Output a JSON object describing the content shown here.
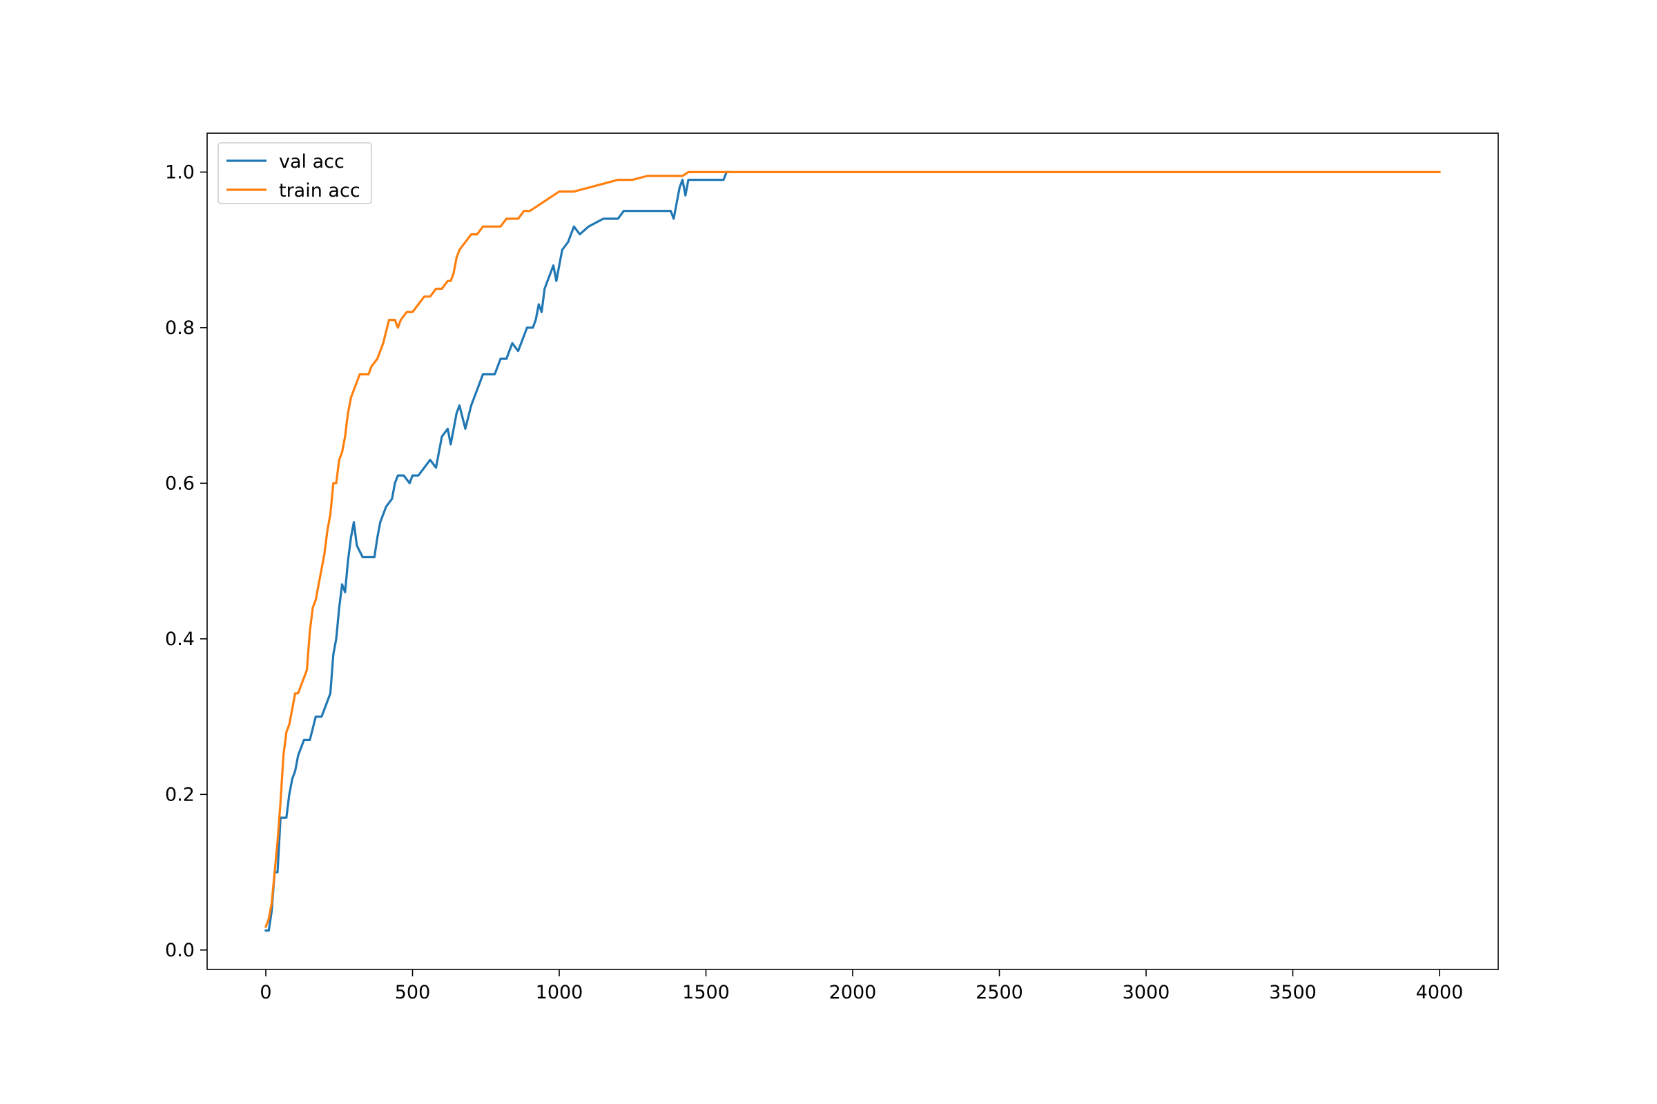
{
  "chart_data": {
    "type": "line",
    "title": "",
    "xlabel": "",
    "ylabel": "",
    "xlim": [
      -200,
      4200
    ],
    "ylim": [
      -0.025,
      1.05
    ],
    "xticks": [
      0,
      500,
      1000,
      1500,
      2000,
      2500,
      3000,
      3500,
      4000
    ],
    "xtick_labels": [
      "0",
      "500",
      "1000",
      "1500",
      "2000",
      "2500",
      "3000",
      "3500",
      "4000"
    ],
    "yticks": [
      0.0,
      0.2,
      0.4,
      0.6,
      0.8,
      1.0
    ],
    "ytick_labels": [
      "0.0",
      "0.2",
      "0.4",
      "0.6",
      "0.8",
      "1.0"
    ],
    "grid": false,
    "legend_position": "top-left",
    "series": [
      {
        "name": "val acc",
        "color": "#1f77b4",
        "x": [
          0,
          10,
          20,
          30,
          40,
          50,
          60,
          70,
          80,
          90,
          100,
          110,
          120,
          130,
          140,
          150,
          170,
          180,
          190,
          210,
          220,
          230,
          240,
          250,
          260,
          270,
          280,
          290,
          300,
          310,
          330,
          350,
          370,
          380,
          390,
          410,
          430,
          440,
          450,
          470,
          490,
          500,
          520,
          540,
          560,
          580,
          600,
          620,
          630,
          650,
          660,
          680,
          700,
          720,
          740,
          760,
          780,
          790,
          800,
          820,
          840,
          860,
          870,
          890,
          900,
          910,
          920,
          930,
          940,
          950,
          960,
          970,
          980,
          990,
          1000,
          1010,
          1030,
          1050,
          1070,
          1100,
          1150,
          1200,
          1220,
          1250,
          1300,
          1350,
          1380,
          1390,
          1400,
          1410,
          1420,
          1430,
          1440,
          1460,
          1500,
          1550,
          1560,
          1570,
          1580
        ],
        "y": [
          0.025,
          0.025,
          0.05,
          0.1,
          0.1,
          0.17,
          0.17,
          0.17,
          0.2,
          0.22,
          0.23,
          0.25,
          0.26,
          0.27,
          0.27,
          0.27,
          0.3,
          0.3,
          0.3,
          0.32,
          0.33,
          0.38,
          0.4,
          0.44,
          0.47,
          0.46,
          0.5,
          0.53,
          0.55,
          0.52,
          0.505,
          0.505,
          0.505,
          0.53,
          0.55,
          0.57,
          0.58,
          0.6,
          0.61,
          0.61,
          0.6,
          0.61,
          0.61,
          0.62,
          0.63,
          0.62,
          0.66,
          0.67,
          0.65,
          0.69,
          0.7,
          0.67,
          0.7,
          0.72,
          0.74,
          0.74,
          0.74,
          0.75,
          0.76,
          0.76,
          0.78,
          0.77,
          0.78,
          0.8,
          0.8,
          0.8,
          0.81,
          0.83,
          0.82,
          0.85,
          0.86,
          0.87,
          0.88,
          0.86,
          0.88,
          0.9,
          0.91,
          0.93,
          0.92,
          0.93,
          0.94,
          0.94,
          0.95,
          0.95,
          0.95,
          0.95,
          0.95,
          0.94,
          0.96,
          0.98,
          0.99,
          0.97,
          0.99,
          0.99,
          0.99,
          0.99,
          0.99,
          1.0,
          1.0
        ]
      },
      {
        "name": "train acc",
        "color": "#ff7f0e",
        "x": [
          0,
          10,
          20,
          30,
          40,
          50,
          60,
          70,
          80,
          90,
          100,
          110,
          120,
          130,
          140,
          150,
          160,
          170,
          180,
          190,
          200,
          210,
          220,
          230,
          240,
          250,
          260,
          270,
          280,
          290,
          300,
          310,
          320,
          330,
          340,
          350,
          360,
          380,
          400,
          420,
          440,
          450,
          460,
          480,
          500,
          520,
          540,
          560,
          580,
          600,
          620,
          630,
          640,
          650,
          660,
          680,
          700,
          720,
          740,
          760,
          780,
          800,
          820,
          840,
          860,
          880,
          900,
          920,
          940,
          960,
          980,
          1000,
          1050,
          1100,
          1150,
          1200,
          1250,
          1300,
          1350,
          1400,
          1420,
          1440,
          1460,
          1500,
          1600,
          2000,
          2500,
          3000,
          3500,
          4000
        ],
        "y": [
          0.03,
          0.04,
          0.06,
          0.1,
          0.14,
          0.19,
          0.25,
          0.28,
          0.29,
          0.31,
          0.33,
          0.33,
          0.34,
          0.35,
          0.36,
          0.41,
          0.44,
          0.45,
          0.47,
          0.49,
          0.51,
          0.54,
          0.56,
          0.6,
          0.6,
          0.63,
          0.64,
          0.66,
          0.69,
          0.71,
          0.72,
          0.73,
          0.74,
          0.74,
          0.74,
          0.74,
          0.75,
          0.76,
          0.78,
          0.81,
          0.81,
          0.8,
          0.81,
          0.82,
          0.82,
          0.83,
          0.84,
          0.84,
          0.85,
          0.85,
          0.86,
          0.86,
          0.87,
          0.89,
          0.9,
          0.91,
          0.92,
          0.92,
          0.93,
          0.93,
          0.93,
          0.93,
          0.94,
          0.94,
          0.94,
          0.95,
          0.95,
          0.955,
          0.96,
          0.965,
          0.97,
          0.975,
          0.975,
          0.98,
          0.985,
          0.99,
          0.99,
          0.995,
          0.995,
          0.995,
          0.995,
          1.0,
          1.0,
          1.0,
          1.0,
          1.0,
          1.0,
          1.0,
          1.0,
          1.0
        ]
      }
    ]
  }
}
